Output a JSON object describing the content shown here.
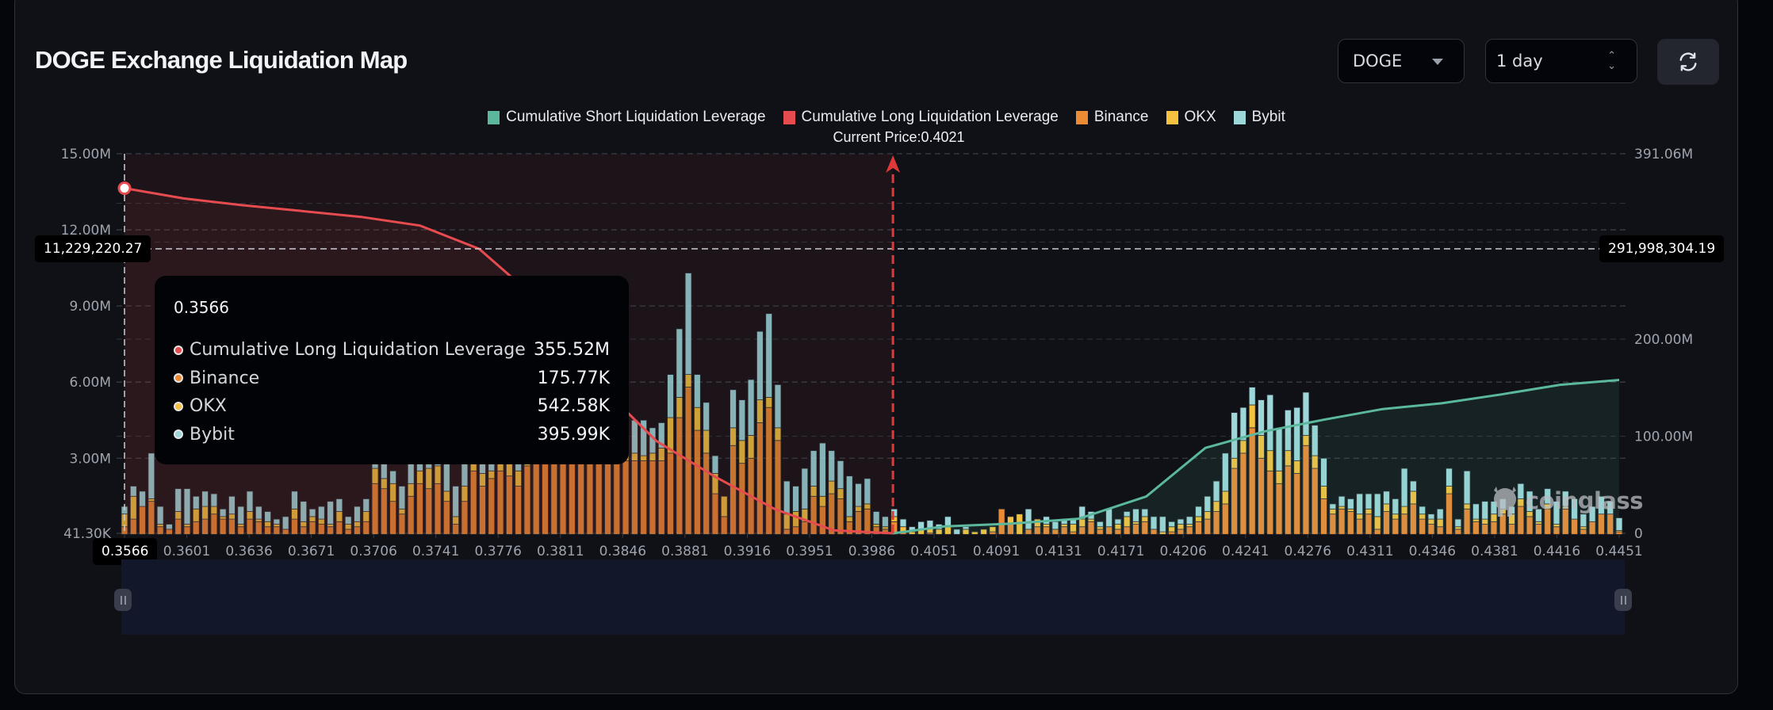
{
  "header": {
    "title": "DOGE Exchange Liquidation Map",
    "coin_select": {
      "value": "DOGE",
      "icon": "caret-down-icon"
    },
    "time_select": {
      "value": "1 day",
      "icon": "up-down-chevron-icon"
    },
    "refresh_button": {
      "icon": "refresh-icon"
    }
  },
  "colors": {
    "short": "#5bb89c",
    "long": "#e54b4f",
    "binance": "#ed8a34",
    "okx": "#f5c240",
    "bybit": "#9ed7da",
    "current_price_line": "#e0393c"
  },
  "tooltip": {
    "title": "0.3566",
    "rows": [
      {
        "label": "Cumulative Long Liquidation Leverage",
        "value": "355.52M",
        "color": "#e54b4f"
      },
      {
        "label": "Binance",
        "value": "175.77K",
        "color": "#ed8a34"
      },
      {
        "label": "OKX",
        "value": "542.58K",
        "color": "#f5c240"
      },
      {
        "label": "Bybit",
        "value": "395.99K",
        "color": "#9ed7da"
      }
    ]
  },
  "crosshair": {
    "left_value": "11,229,220.27",
    "right_value": "291,998,304.19",
    "x_value": "0.3566"
  },
  "watermark": "coinglass",
  "chart_data": {
    "type": "bar",
    "title": "DOGE Exchange Liquidation Map",
    "legend": [
      "Cumulative Short Liquidation Leverage",
      "Cumulative Long Liquidation Leverage",
      "Binance",
      "OKX",
      "Bybit"
    ],
    "legend_position": "top-center",
    "current_price_label": "Current Price:0.4021",
    "current_price": 0.4021,
    "x_range": [
      0.3566,
      0.4451
    ],
    "x_tick_labels": [
      "0.3566",
      "0.3601",
      "0.3636",
      "0.3671",
      "0.3706",
      "0.3741",
      "0.3776",
      "0.3811",
      "0.3846",
      "0.3881",
      "0.3916",
      "0.3951",
      "0.3986",
      "0.4051",
      "0.4091",
      "0.4131",
      "0.4171",
      "0.4206",
      "0.4241",
      "0.4276",
      "0.4311",
      "0.4346",
      "0.4381",
      "0.4416",
      "0.4451"
    ],
    "y_left": {
      "tick_labels": [
        "41.30K",
        "3.00M",
        "6.00M",
        "9.00M",
        "12.00M",
        "15.00M"
      ],
      "range": [
        41300,
        15000000
      ],
      "unit": "per-exchange liquidation leverage"
    },
    "y_right": {
      "tick_labels": [
        "0",
        "100.00M",
        "200.00M",
        "391.06M"
      ],
      "range": [
        0,
        391060000
      ],
      "unit": "cumulative liquidation leverage"
    },
    "grid": true,
    "bars": {
      "binance": [
        0.3,
        0.6,
        1.1,
        1.3,
        0.3,
        0.2,
        0.6,
        0.3,
        0.5,
        0.6,
        0.8,
        0.6,
        0.6,
        0.3,
        0.6,
        0.5,
        0.3,
        0.3,
        0.2,
        0.6,
        0.3,
        0.5,
        0.4,
        0.3,
        0.5,
        0.2,
        0.3,
        0.5,
        2.0,
        1.8,
        1.3,
        0.8,
        1.5,
        2.0,
        1.8,
        2.0,
        1.3,
        0.4,
        1.3,
        2.5,
        1.9,
        2.2,
        2.5,
        2.3,
        1.9,
        2.7,
        2.9,
        2.9,
        2.9,
        2.9,
        2.9,
        2.9,
        2.8,
        2.9,
        2.9,
        2.9,
        2.9,
        2.9,
        2.9,
        2.9,
        2.9,
        3.2,
        4.6,
        5.8,
        4.1,
        3.2,
        1.6,
        0.7,
        3.5,
        2.8,
        3.0,
        4.4,
        5.0,
        3.7,
        0.2,
        0.3,
        0.5,
        1.5,
        1.1,
        1.6,
        1.4,
        0.5,
        0.9,
        1.0,
        0.3,
        0.2,
        0.5,
        0.1,
        0.0,
        0.0,
        0.05,
        0.0,
        0.0,
        0.0,
        0.0,
        0.0,
        0.0,
        0.1,
        1.0,
        0.4,
        0.0,
        0.2,
        0.3,
        0.3,
        0.2,
        0.3,
        0.1,
        0.3,
        0.5,
        0.2,
        0.3,
        0.2,
        0.3,
        0.4,
        0.5,
        0.2,
        0.0,
        0.1,
        0.2,
        0.3,
        0.5,
        0.6,
        0.9,
        1.2,
        2.6,
        3.2,
        4.2,
        3.0,
        2.5,
        2.0,
        2.7,
        2.4,
        3.5,
        2.6,
        1.4,
        0.8,
        1.0,
        0.9,
        0.6,
        0.8,
        0.2,
        0.9,
        0.6,
        0.8,
        1.2,
        0.6,
        0.4,
        0.3,
        1.6,
        0.2,
        1.0,
        0.5,
        0.4,
        0.5,
        0.8,
        0.4,
        1.1,
        0.7,
        0.4,
        1.0,
        0.3,
        1.0,
        0.6,
        0.2,
        0.5,
        0.8,
        0.8,
        0.1
      ],
      "okx": [
        0.5,
        0.9,
        0.0,
        0.1,
        0.1,
        0.0,
        0.3,
        0.1,
        0.5,
        0.5,
        0.3,
        0.1,
        0.2,
        0.1,
        0.3,
        0.1,
        0.2,
        0.1,
        0.0,
        0.4,
        0.2,
        0.2,
        0.2,
        0.1,
        0.4,
        0.2,
        0.2,
        0.4,
        0.6,
        0.4,
        0.7,
        0.2,
        0.5,
        0.5,
        0.8,
        0.7,
        0.4,
        0.3,
        0.6,
        0.4,
        0.5,
        0.3,
        0.3,
        0.5,
        0.6,
        0.4,
        0.6,
        0.3,
        0.3,
        0.3,
        0.2,
        0.3,
        0.3,
        0.3,
        0.3,
        0.3,
        0.2,
        0.3,
        0.2,
        0.3,
        0.5,
        1.4,
        0.8,
        0.5,
        0.9,
        0.9,
        0.8,
        0.8,
        0.7,
        0.9,
        0.9,
        0.9,
        0.4,
        0.5,
        0.6,
        0.6,
        0.5,
        0.4,
        0.4,
        0.5,
        0.4,
        0.2,
        0.2,
        0.2,
        0.1,
        0.1,
        0.2,
        0.2,
        0.1,
        0.2,
        0.2,
        0.2,
        0.3,
        0.0,
        0.2,
        0.1,
        0.2,
        0.2,
        0.0,
        0.3,
        0.8,
        0.0,
        0.3,
        0.1,
        0.0,
        0.1,
        0.3,
        0.3,
        0.1,
        0.1,
        0.0,
        0.2,
        0.4,
        0.1,
        0.2,
        0.0,
        0.1,
        0.2,
        0.2,
        0.1,
        0.2,
        0.3,
        0.4,
        0.5,
        0.4,
        0.5,
        0.9,
        0.9,
        0.8,
        0.5,
        0.6,
        0.5,
        0.4,
        0.5,
        0.5,
        0.2,
        0.1,
        0.1,
        0.2,
        0.2,
        0.5,
        0.3,
        0.2,
        0.3,
        0.5,
        0.2,
        0.2,
        0.3,
        0.3,
        0.1,
        0.2,
        0.1,
        0.2,
        0.3,
        0.2,
        0.4,
        0.3,
        0.2,
        0.1,
        0.2,
        0.1,
        0.1,
        0.0,
        0.1,
        0.0,
        0.0,
        0.0,
        0.05
      ],
      "bybit": [
        0.3,
        0.4,
        0.6,
        1.8,
        0.7,
        0.2,
        0.9,
        1.4,
        0.5,
        0.6,
        0.5,
        0.3,
        0.7,
        0.7,
        0.8,
        0.5,
        0.4,
        0.2,
        0.5,
        0.7,
        0.8,
        0.3,
        0.5,
        0.9,
        0.5,
        0.3,
        0.6,
        0.5,
        0.6,
        0.6,
        0.5,
        0.9,
        0.8,
        0.7,
        0.6,
        0.9,
        1.2,
        1.2,
        1.5,
        1.0,
        0.5,
        1.6,
        1.3,
        2.0,
        1.4,
        1.3,
        1.1,
        1.2,
        1.0,
        0.8,
        0.9,
        1.1,
        1.0,
        1.2,
        1.0,
        0.9,
        0.8,
        1.3,
        1.4,
        1.0,
        1.0,
        1.7,
        2.7,
        4.0,
        1.3,
        1.1,
        0.7,
        0.0,
        1.5,
        1.6,
        2.2,
        2.7,
        3.3,
        1.7,
        1.3,
        1.0,
        1.6,
        1.4,
        2.1,
        1.2,
        1.1,
        1.6,
        0.9,
        1.0,
        0.5,
        0.4,
        0.3,
        0.3,
        0.2,
        0.3,
        0.3,
        0.2,
        0.4,
        0.2,
        0.1,
        0.0,
        0.0,
        0.0,
        0.0,
        0.0,
        0.0,
        0.8,
        0.0,
        0.3,
        0.3,
        0.2,
        0.2,
        0.5,
        0.3,
        0.2,
        0.7,
        0.2,
        0.2,
        0.5,
        0.3,
        0.5,
        0.6,
        0.2,
        0.2,
        0.3,
        0.4,
        0.6,
        0.8,
        1.5,
        1.8,
        1.3,
        0.7,
        1.4,
        2.2,
        1.7,
        1.6,
        2.1,
        1.7,
        1.2,
        1.1,
        0.2,
        0.4,
        0.4,
        0.8,
        0.6,
        0.9,
        0.5,
        0.6,
        1.5,
        0.4,
        0.3,
        0.2,
        0.4,
        0.7,
        0.3,
        1.3,
        0.6,
        0.7,
        0.5,
        0.4,
        0.3,
        0.6,
        0.8,
        0.5,
        0.6,
        0.9,
        0.6,
        0.8,
        0.5,
        0.6,
        0.7,
        0.5,
        0.5
      ],
      "units": "millions (left axis)"
    },
    "cumulative_long": {
      "x": [
        0.3566,
        0.3601,
        0.3636,
        0.3671,
        0.3706,
        0.3741,
        0.3776,
        0.3811,
        0.3846,
        0.3881,
        0.3916,
        0.3951,
        0.3986,
        0.4021
      ],
      "values_millions": [
        355.52,
        345,
        338,
        332,
        326,
        317,
        293,
        240,
        155,
        95,
        58,
        25,
        3,
        0
      ]
    },
    "cumulative_short": {
      "x": [
        0.4021,
        0.4051,
        0.4091,
        0.4131,
        0.4171,
        0.4206,
        0.4241,
        0.4276,
        0.4311,
        0.4346,
        0.4381,
        0.4416,
        0.4451
      ],
      "values_millions": [
        0,
        7,
        10,
        15,
        38,
        88,
        105,
        117,
        128,
        134,
        143,
        153,
        158
      ]
    }
  }
}
